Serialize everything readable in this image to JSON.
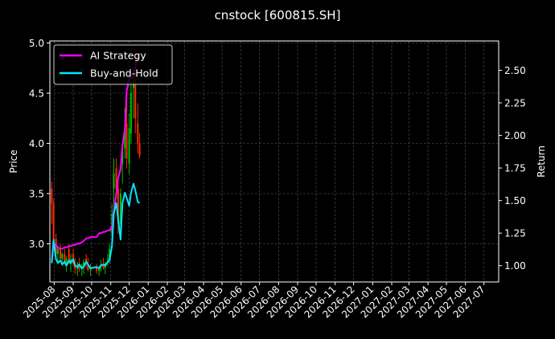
{
  "chart_data": {
    "type": "line",
    "title": "cnstock [600815.SH]",
    "xlabel": "",
    "ylabel_left": "Price",
    "ylabel_right": "Return",
    "x_tick_labels": [
      "2025-08",
      "2025-09",
      "2025-10",
      "2025-11",
      "2025-12",
      "2026-01",
      "2026-02",
      "2026-03",
      "2026-04",
      "2026-05",
      "2026-06",
      "2026-07",
      "2026-08",
      "2026-09",
      "2026-10",
      "2026-11",
      "2026-12",
      "2027-01",
      "2027-02",
      "2027-03",
      "2027-04",
      "2027-05",
      "2027-06",
      "2027-07"
    ],
    "x_range": [
      "2025-07-25",
      "2027-07-25"
    ],
    "y_left_ticks": [
      "3.0",
      "3.5",
      "4.0",
      "4.5",
      "5.0"
    ],
    "y_left_range": [
      2.62,
      5.02
    ],
    "y_right_ticks": [
      "1.00",
      "1.25",
      "1.50",
      "1.75",
      "2.00",
      "2.25",
      "2.50"
    ],
    "y_right_range": [
      0.875,
      2.725
    ],
    "grid": true,
    "legend_position": "top-left",
    "colors": {
      "background": "#000000",
      "up_candle": "#00c000",
      "down_candle": "#ff2a00",
      "ai_strategy": "#ff00ff",
      "buy_and_hold": "#00e5ff",
      "axis": "#ffffff",
      "grid": "#555555"
    },
    "series": [
      {
        "name": "AI Strategy",
        "axis": "right",
        "x": [
          "2025-07-28",
          "2025-07-31",
          "2025-08-04",
          "2025-08-07",
          "2025-08-11",
          "2025-08-14",
          "2025-08-18",
          "2025-08-21",
          "2025-08-25",
          "2025-08-28",
          "2025-09-01",
          "2025-09-04",
          "2025-09-08",
          "2025-09-11",
          "2025-09-15",
          "2025-09-18",
          "2025-09-22",
          "2025-09-25",
          "2025-09-29",
          "2025-10-09",
          "2025-10-13",
          "2025-10-16",
          "2025-10-20",
          "2025-10-23",
          "2025-10-27",
          "2025-10-30",
          "2025-11-03",
          "2025-11-06",
          "2025-11-10",
          "2025-11-13",
          "2025-11-17",
          "2025-11-20",
          "2025-11-24",
          "2025-11-27",
          "2025-12-01",
          "2025-12-04",
          "2025-12-08",
          "2025-12-11",
          "2025-12-15"
        ],
        "values": [
          1.02,
          1.17,
          1.16,
          1.14,
          1.13,
          1.13,
          1.14,
          1.14,
          1.15,
          1.15,
          1.16,
          1.16,
          1.17,
          1.17,
          1.18,
          1.19,
          1.21,
          1.21,
          1.22,
          1.22,
          1.25,
          1.25,
          1.26,
          1.26,
          1.27,
          1.27,
          1.3,
          1.42,
          1.55,
          1.67,
          1.74,
          1.92,
          2.05,
          2.34,
          2.44,
          2.44,
          2.45,
          2.52,
          2.62
        ]
      },
      {
        "name": "Buy-and-Hold",
        "axis": "right",
        "x": [
          "2025-07-28",
          "2025-07-31",
          "2025-08-04",
          "2025-08-07",
          "2025-08-11",
          "2025-08-14",
          "2025-08-18",
          "2025-08-21",
          "2025-08-25",
          "2025-08-28",
          "2025-09-01",
          "2025-09-04",
          "2025-09-08",
          "2025-09-11",
          "2025-09-15",
          "2025-09-18",
          "2025-09-22",
          "2025-09-25",
          "2025-09-29",
          "2025-10-09",
          "2025-10-13",
          "2025-10-16",
          "2025-10-20",
          "2025-10-23",
          "2025-10-27",
          "2025-10-30",
          "2025-11-03",
          "2025-11-06",
          "2025-11-10",
          "2025-11-13",
          "2025-11-17",
          "2025-11-20",
          "2025-11-24",
          "2025-11-27",
          "2025-12-01",
          "2025-12-04",
          "2025-12-08",
          "2025-12-11",
          "2025-12-15",
          "2025-12-18"
        ],
        "values": [
          1.02,
          1.2,
          1.05,
          1.02,
          1.04,
          1.01,
          1.03,
          1.0,
          1.04,
          1.02,
          1.05,
          1.0,
          0.99,
          1.01,
          0.98,
          0.99,
          1.03,
          1.01,
          0.98,
          0.99,
          0.98,
          1.0,
          1.01,
          1.0,
          1.03,
          1.04,
          1.15,
          1.4,
          1.48,
          1.36,
          1.2,
          1.48,
          1.56,
          1.52,
          1.46,
          1.56,
          1.63,
          1.58,
          1.49,
          1.48
        ]
      }
    ],
    "candles": {
      "axis": "left",
      "x": [
        "2025-07-28",
        "2025-07-31",
        "2025-08-04",
        "2025-08-07",
        "2025-08-11",
        "2025-08-14",
        "2025-08-18",
        "2025-08-21",
        "2025-08-25",
        "2025-08-28",
        "2025-09-01",
        "2025-09-04",
        "2025-09-08",
        "2025-09-11",
        "2025-09-15",
        "2025-09-18",
        "2025-09-22",
        "2025-09-25",
        "2025-09-29",
        "2025-10-09",
        "2025-10-13",
        "2025-10-16",
        "2025-10-20",
        "2025-10-23",
        "2025-10-27",
        "2025-10-30",
        "2025-11-03",
        "2025-11-06",
        "2025-11-10",
        "2025-11-13",
        "2025-11-17",
        "2025-11-20",
        "2025-11-24",
        "2025-11-27",
        "2025-12-01",
        "2025-12-04",
        "2025-12-08",
        "2025-12-11",
        "2025-12-15",
        "2025-12-18"
      ],
      "open": [
        3.55,
        3.4,
        3.05,
        2.9,
        2.95,
        2.85,
        2.9,
        2.8,
        2.95,
        2.8,
        2.9,
        2.8,
        2.75,
        2.8,
        2.75,
        2.78,
        2.85,
        2.8,
        2.74,
        2.76,
        2.73,
        2.78,
        2.8,
        2.76,
        2.84,
        2.85,
        3.1,
        3.55,
        3.75,
        3.55,
        3.2,
        3.8,
        3.95,
        4.2,
        3.8,
        4.1,
        4.55,
        4.6,
        4.2,
        4.0
      ],
      "high": [
        3.62,
        3.45,
        3.1,
        2.98,
        3.0,
        2.92,
        2.95,
        2.88,
        3.0,
        2.9,
        2.95,
        2.86,
        2.82,
        2.86,
        2.8,
        2.85,
        2.9,
        2.86,
        2.8,
        2.8,
        2.78,
        2.84,
        2.86,
        2.82,
        2.9,
        3.0,
        3.4,
        3.85,
        3.85,
        3.62,
        3.55,
        4.0,
        4.35,
        4.5,
        4.3,
        4.62,
        4.75,
        4.7,
        4.4,
        4.1
      ],
      "low": [
        3.2,
        2.95,
        2.85,
        2.8,
        2.85,
        2.78,
        2.8,
        2.72,
        2.8,
        2.72,
        2.78,
        2.7,
        2.68,
        2.72,
        2.68,
        2.7,
        2.76,
        2.72,
        2.68,
        2.7,
        2.68,
        2.72,
        2.74,
        2.7,
        2.78,
        2.8,
        3.0,
        3.35,
        3.45,
        3.1,
        3.05,
        3.6,
        3.85,
        3.75,
        3.7,
        4.0,
        4.25,
        4.1,
        3.9,
        3.85
      ],
      "close": [
        3.4,
        3.05,
        2.9,
        2.95,
        2.85,
        2.9,
        2.8,
        2.85,
        2.8,
        2.85,
        2.8,
        2.75,
        2.8,
        2.75,
        2.78,
        2.82,
        2.8,
        2.74,
        2.76,
        2.73,
        2.76,
        2.8,
        2.76,
        2.8,
        2.85,
        2.95,
        3.3,
        3.7,
        3.55,
        3.2,
        3.5,
        3.95,
        4.15,
        3.85,
        4.15,
        4.5,
        4.6,
        4.25,
        4.0,
        3.88
      ]
    }
  }
}
